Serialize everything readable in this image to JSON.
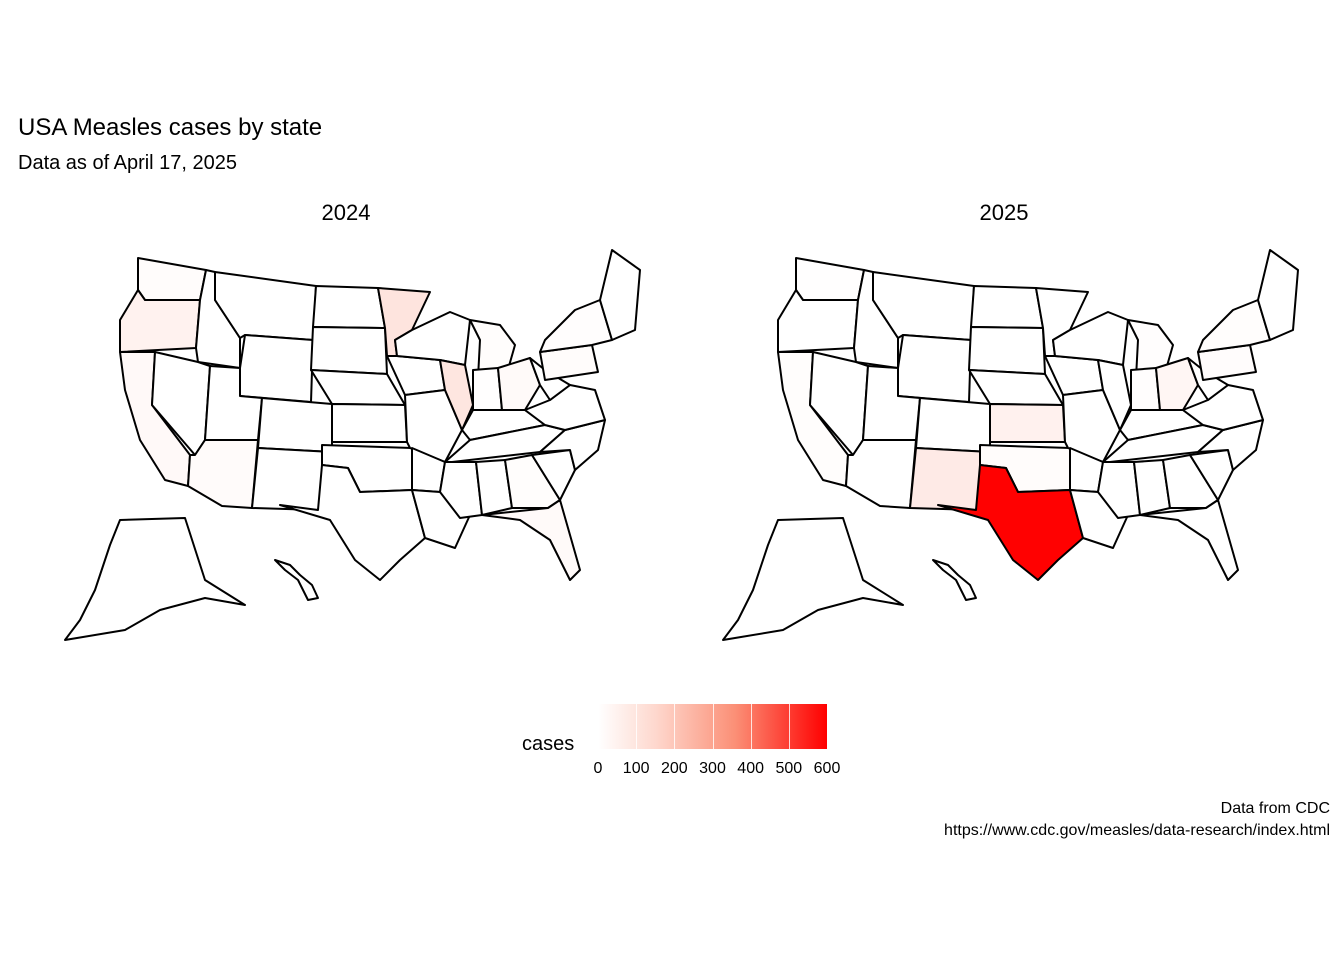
{
  "title": "USA Measles cases by state",
  "subtitle": "Data as of April 17, 2025",
  "facets": [
    "2024",
    "2025"
  ],
  "legend": {
    "title": "cases",
    "ticks": [
      "0",
      "100",
      "200",
      "300",
      "400",
      "500",
      "600"
    ],
    "range": [
      0,
      600
    ],
    "color_low": "#ffffff",
    "color_high": "#ff0000"
  },
  "caption": {
    "line1": "Data from CDC",
    "line2": "https://www.cdc.gov/measles/data-research/index.html"
  },
  "map_data": {
    "2024": {
      "Minnesota": 70,
      "Illinois": 67,
      "Oregon": 35,
      "Washington": 8,
      "California": 15,
      "Arizona": 10,
      "Ohio": 12,
      "Pennsylvania": 9,
      "Florida": 12,
      "Georgia": 6,
      "New York": 5,
      "Michigan": 6,
      "Indiana": 3,
      "New Mexico": 1,
      "Texas": 1
    },
    "2025": {
      "Texas": 597,
      "New Mexico": 54,
      "Kansas": 37,
      "Ohio": 23,
      "Michigan": 4,
      "Pennsylvania": 7,
      "California": 6,
      "Washington": 3,
      "Oklahoma": 9,
      "New York": 6,
      "Indiana": 4,
      "Kentucky": 1
    }
  }
}
